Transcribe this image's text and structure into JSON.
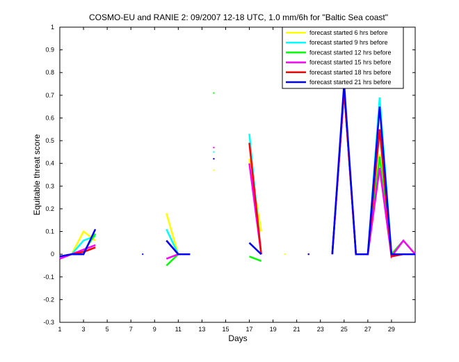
{
  "chart_data": {
    "type": "line",
    "title": "COSMO-EU and RANIE 2: 09/2007 12-18 UTC, 1.0 mm/6h for \"Baltic Sea coast\"",
    "xlabel": "Days",
    "ylabel": "Equitable threat score",
    "xlim": [
      1,
      31
    ],
    "ylim": [
      -0.3,
      1
    ],
    "xticks": [
      1,
      3,
      5,
      7,
      9,
      11,
      13,
      15,
      17,
      19,
      21,
      23,
      25,
      27,
      29
    ],
    "yticks": [
      -0.3,
      -0.2,
      -0.1,
      0,
      0.1,
      0.2,
      0.3,
      0.4,
      0.5,
      0.6,
      0.7,
      0.8,
      0.9,
      1
    ],
    "ytick_labels": [
      "-0.3",
      "-0.2",
      "-0.1",
      "0",
      "0.1",
      "0.2",
      "0.3",
      "0.4",
      "0.5",
      "0.6",
      "0.7",
      "0.8",
      "0.9",
      "1"
    ],
    "legend_position": "top-right",
    "grid": false,
    "x": [
      1,
      2,
      3,
      4,
      5,
      6,
      7,
      8,
      9,
      10,
      11,
      12,
      13,
      14,
      15,
      16,
      17,
      18,
      19,
      20,
      21,
      22,
      23,
      24,
      25,
      26,
      27,
      28,
      29,
      30,
      31
    ],
    "series": [
      {
        "name": "forecast started 6 hrs before",
        "color": "#ffff00",
        "values": [
          -0.01,
          0,
          0.1,
          0.06,
          null,
          null,
          null,
          null,
          null,
          0.18,
          0,
          null,
          null,
          0.37,
          null,
          null,
          0.42,
          0.1,
          null,
          0,
          null,
          0,
          null,
          0,
          0.74,
          0,
          0,
          0.44,
          0,
          0.06,
          0
        ]
      },
      {
        "name": "forecast started 9 hrs before",
        "color": "#00ffff",
        "values": [
          -0.01,
          0,
          0.06,
          0.08,
          null,
          null,
          null,
          null,
          null,
          0.11,
          0,
          null,
          null,
          0.45,
          null,
          null,
          0.53,
          0,
          null,
          null,
          null,
          0,
          null,
          0,
          0.73,
          0,
          0,
          0.69,
          0,
          0.06,
          0
        ]
      },
      {
        "name": "forecast started 12 hrs before",
        "color": "#00ff00",
        "values": [
          -0.01,
          0,
          0.01,
          0.09,
          null,
          null,
          null,
          null,
          null,
          -0.05,
          0,
          null,
          null,
          0.71,
          null,
          null,
          -0.01,
          -0.03,
          null,
          null,
          null,
          0,
          null,
          0,
          0.72,
          0,
          0,
          0.43,
          0,
          0.06,
          0
        ]
      },
      {
        "name": "forecast started 15 hrs before",
        "color": "#ff00ff",
        "values": [
          -0.02,
          0,
          0.02,
          0.04,
          null,
          null,
          null,
          null,
          null,
          -0.02,
          0,
          null,
          null,
          0.47,
          null,
          null,
          0.4,
          0,
          null,
          null,
          null,
          0,
          null,
          0,
          0.72,
          0,
          0,
          0.38,
          -0.01,
          0.06,
          0
        ]
      },
      {
        "name": "forecast started 18 hrs before",
        "color": "#ff0000",
        "values": [
          -0.01,
          0,
          0.01,
          0.03,
          null,
          null,
          null,
          null,
          null,
          0.06,
          0,
          null,
          null,
          0.42,
          null,
          null,
          0.49,
          0,
          null,
          null,
          null,
          0,
          null,
          0,
          0.72,
          0,
          0,
          0.55,
          -0.01,
          0,
          0
        ]
      },
      {
        "name": "forecast started 21 hrs before",
        "color": "#0000ff",
        "values": [
          -0.01,
          0,
          0,
          0.11,
          null,
          null,
          null,
          0,
          null,
          0.06,
          0,
          0,
          null,
          0.42,
          null,
          null,
          0.05,
          0,
          null,
          null,
          null,
          0,
          null,
          0,
          0.75,
          0,
          0,
          0.65,
          0,
          0,
          0
        ]
      }
    ]
  }
}
